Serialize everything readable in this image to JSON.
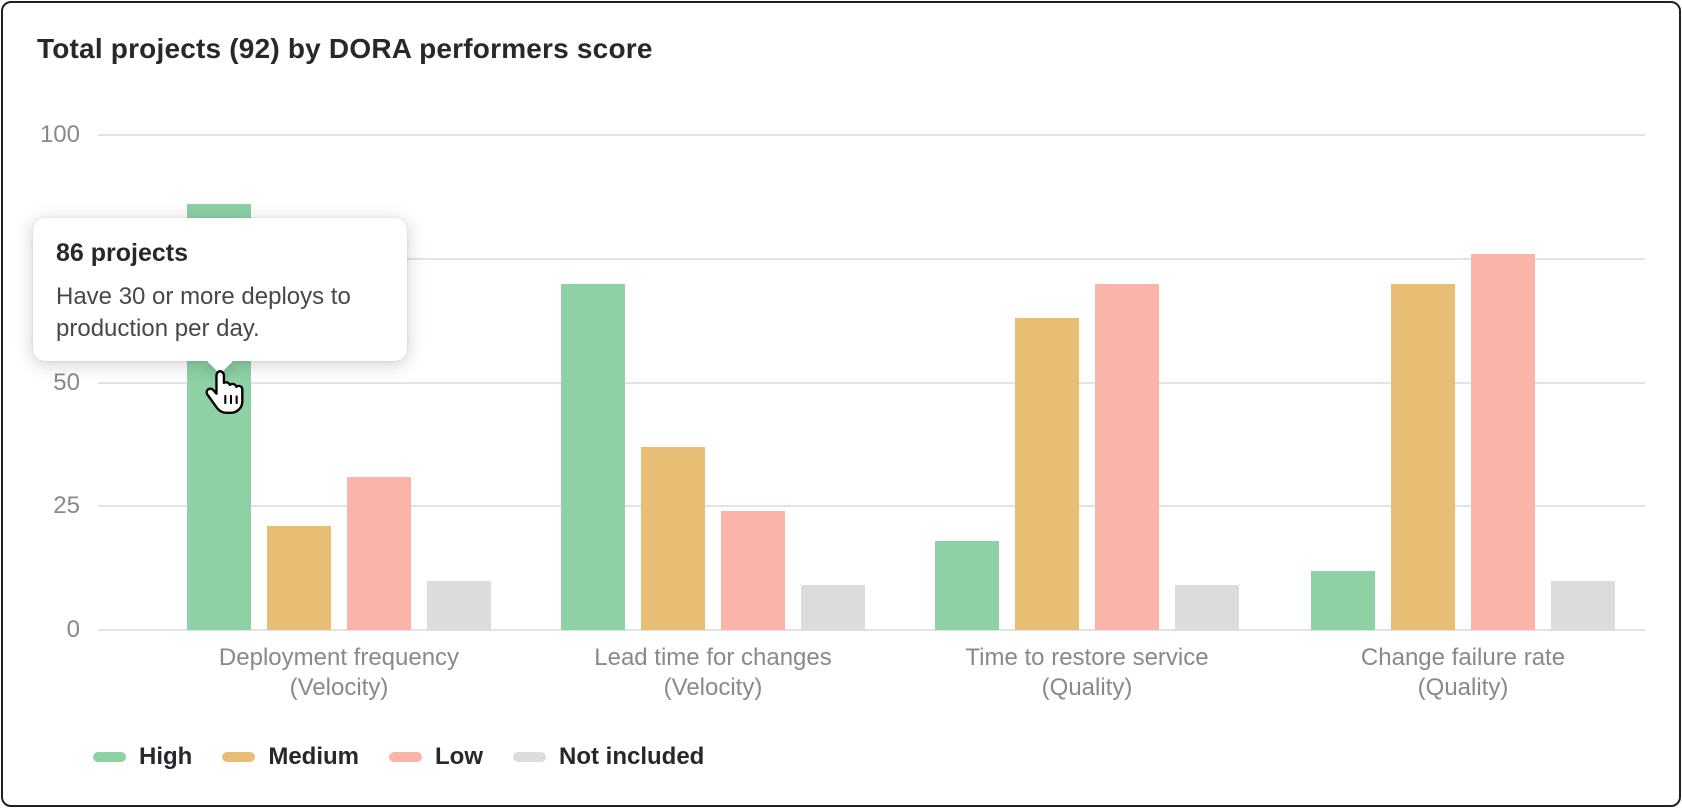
{
  "title": "Total projects (92) by DORA performers score",
  "chart_data": {
    "type": "bar",
    "title": "Total projects (92) by DORA performers score",
    "total_projects": 92,
    "categories": [
      "Deployment frequency (Velocity)",
      "Lead time for changes (Velocity)",
      "Time to restore service (Quality)",
      "Change failure rate (Quality)"
    ],
    "category_lines": [
      {
        "label": "Deployment frequency",
        "sub": "(Velocity)"
      },
      {
        "label": "Lead time for changes",
        "sub": "(Velocity)"
      },
      {
        "label": "Time to restore service",
        "sub": "(Quality)"
      },
      {
        "label": "Change failure rate",
        "sub": "(Quality)"
      }
    ],
    "series": [
      {
        "name": "High",
        "color": "#8dd1a4",
        "values": [
          86,
          70,
          18,
          12
        ]
      },
      {
        "name": "Medium",
        "color": "#e8bd74",
        "values": [
          21,
          37,
          63,
          70
        ]
      },
      {
        "name": "Low",
        "color": "#fab4aa",
        "values": [
          31,
          24,
          70,
          76
        ]
      },
      {
        "name": "Not included",
        "color": "#dcdcde",
        "values": [
          10,
          9,
          9,
          10
        ]
      }
    ],
    "ylim": [
      0,
      100
    ],
    "yticks": [
      0,
      25,
      50,
      75,
      100
    ],
    "grid": true,
    "legend_position": "bottom",
    "tooltip": {
      "title": "86 projects",
      "body": "Have 30 or more deploys to production per day.",
      "anchor_series": "High",
      "anchor_category": "Deployment frequency (Velocity)"
    }
  }
}
